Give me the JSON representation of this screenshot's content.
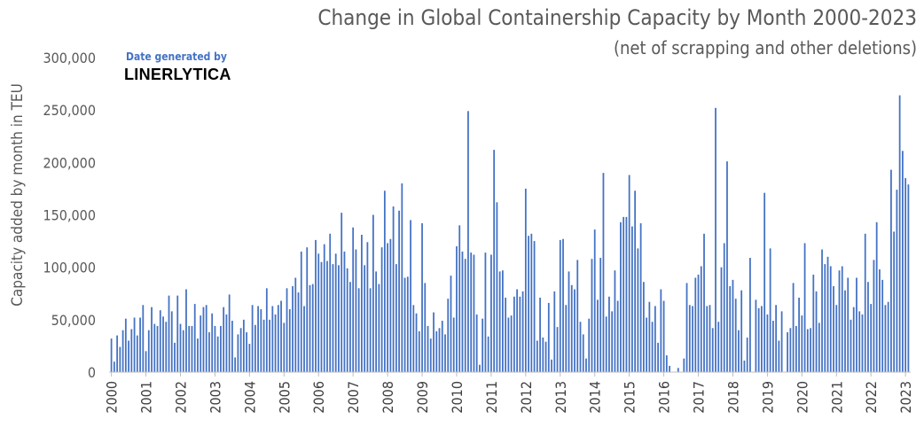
{
  "chart_data": {
    "type": "bar",
    "title": "Change in Global Containership Capacity by Month 2000-2023",
    "subtitle": "(net of scrapping and other deletions)",
    "ylabel": "Capacity added by month in TEU",
    "xlabel": "",
    "ylim": [
      0,
      300000
    ],
    "yticks": [
      "0",
      "50,000",
      "100,000",
      "150,000",
      "200,000",
      "250,000",
      "300,000"
    ],
    "ytick_values": [
      0,
      50000,
      100000,
      150000,
      200000,
      250000,
      300000
    ],
    "xticks": [
      "2000",
      "2001",
      "2002",
      "2003",
      "2004",
      "2005",
      "2006",
      "2007",
      "2008",
      "2009",
      "2010",
      "2011",
      "2012",
      "2013",
      "2014",
      "2015",
      "2016",
      "2017",
      "2018",
      "2019",
      "2020",
      "2021",
      "2022",
      "2023"
    ],
    "color": "#4472c4",
    "start": "2000-01",
    "values": [
      32000,
      10000,
      35000,
      24000,
      40000,
      51000,
      30000,
      41000,
      52000,
      35000,
      52000,
      64000,
      20000,
      40000,
      62000,
      46000,
      44000,
      59000,
      53000,
      48000,
      73000,
      58000,
      28000,
      73000,
      46000,
      40000,
      79000,
      44000,
      44000,
      65000,
      32000,
      54000,
      62000,
      64000,
      38000,
      56000,
      44000,
      34000,
      44000,
      62000,
      55000,
      74000,
      49000,
      14000,
      36000,
      42000,
      50000,
      38000,
      27000,
      64000,
      45000,
      63000,
      60000,
      50000,
      80000,
      50000,
      63000,
      55000,
      64000,
      68000,
      47000,
      80000,
      60000,
      82000,
      90000,
      76000,
      115000,
      63000,
      119000,
      83000,
      84000,
      126000,
      113000,
      105000,
      122000,
      106000,
      132000,
      103000,
      113000,
      102000,
      152000,
      115000,
      99000,
      86000,
      138000,
      117000,
      80000,
      131000,
      102000,
      124000,
      80000,
      150000,
      96000,
      84000,
      119000,
      173000,
      123000,
      127000,
      158000,
      103000,
      154000,
      180000,
      90000,
      91000,
      145000,
      64000,
      56000,
      39000,
      142000,
      85000,
      44000,
      32000,
      57000,
      39000,
      42000,
      49000,
      36000,
      70000,
      92000,
      52000,
      120000,
      140000,
      115000,
      108000,
      249000,
      114000,
      112000,
      55000,
      7000,
      51000,
      114000,
      34000,
      112000,
      212000,
      162000,
      96000,
      97000,
      71000,
      52000,
      54000,
      72000,
      79000,
      72000,
      77000,
      175000,
      130000,
      132000,
      125000,
      30000,
      71000,
      33000,
      29000,
      66000,
      12000,
      77000,
      43000,
      126000,
      127000,
      64000,
      96000,
      83000,
      79000,
      107000,
      48000,
      36000,
      13000,
      51000,
      108000,
      136000,
      69000,
      109000,
      190000,
      53000,
      72000,
      58000,
      97000,
      68000,
      143000,
      148000,
      148000,
      188000,
      139000,
      173000,
      118000,
      142000,
      86000,
      52000,
      67000,
      48000,
      63000,
      28000,
      79000,
      68000,
      16000,
      6000,
      0,
      0,
      4000,
      0,
      13000,
      85000,
      64000,
      63000,
      90000,
      93000,
      101000,
      132000,
      63000,
      64000,
      42000,
      252000,
      48000,
      100000,
      123000,
      201000,
      82000,
      88000,
      70000,
      40000,
      78000,
      11000,
      33000,
      109000,
      0,
      69000,
      61000,
      63000,
      171000,
      55000,
      118000,
      49000,
      64000,
      30000,
      58000,
      0,
      38000,
      42000,
      85000,
      44000,
      71000,
      54000,
      123000,
      41000,
      42000,
      93000,
      77000,
      47000,
      117000,
      103000,
      110000,
      101000,
      82000,
      64000,
      97000,
      101000,
      78000,
      90000,
      50000,
      62000,
      90000,
      58000,
      55000,
      132000,
      86000,
      65000,
      107000,
      143000,
      98000,
      88000,
      64000,
      67000,
      193000,
      134000,
      174000,
      264000,
      211000,
      185000,
      179000
    ]
  },
  "annotations": {
    "generated_label": "Date generated by",
    "brand": "LINERLYTICA"
  }
}
